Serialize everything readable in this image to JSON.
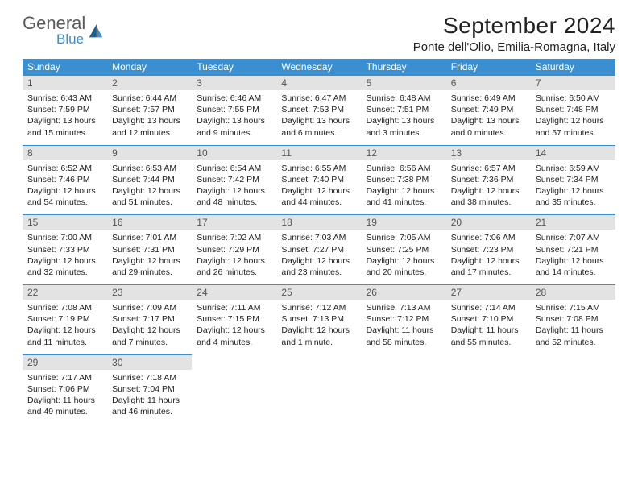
{
  "brand": {
    "general": "General",
    "blue": "Blue"
  },
  "title": "September 2024",
  "location": "Ponte dell'Olio, Emilia-Romagna, Italy",
  "colors": {
    "header_bg": "#3a8fd0",
    "header_text": "#ffffff",
    "daynum_bg": "#e3e3e3",
    "daynum_text": "#555555",
    "body_text": "#222222",
    "rule": "#3a8fd0"
  },
  "fonts": {
    "title_pt": 28,
    "location_pt": 15,
    "dayheader_pt": 12,
    "daynum_pt": 12,
    "body_pt": 10.5
  },
  "day_headers": [
    "Sunday",
    "Monday",
    "Tuesday",
    "Wednesday",
    "Thursday",
    "Friday",
    "Saturday"
  ],
  "weeks": [
    [
      {
        "n": "1",
        "sr": "6:43 AM",
        "ss": "7:59 PM",
        "dl": "13 hours and 15 minutes."
      },
      {
        "n": "2",
        "sr": "6:44 AM",
        "ss": "7:57 PM",
        "dl": "13 hours and 12 minutes."
      },
      {
        "n": "3",
        "sr": "6:46 AM",
        "ss": "7:55 PM",
        "dl": "13 hours and 9 minutes."
      },
      {
        "n": "4",
        "sr": "6:47 AM",
        "ss": "7:53 PM",
        "dl": "13 hours and 6 minutes."
      },
      {
        "n": "5",
        "sr": "6:48 AM",
        "ss": "7:51 PM",
        "dl": "13 hours and 3 minutes."
      },
      {
        "n": "6",
        "sr": "6:49 AM",
        "ss": "7:49 PM",
        "dl": "13 hours and 0 minutes."
      },
      {
        "n": "7",
        "sr": "6:50 AM",
        "ss": "7:48 PM",
        "dl": "12 hours and 57 minutes."
      }
    ],
    [
      {
        "n": "8",
        "sr": "6:52 AM",
        "ss": "7:46 PM",
        "dl": "12 hours and 54 minutes."
      },
      {
        "n": "9",
        "sr": "6:53 AM",
        "ss": "7:44 PM",
        "dl": "12 hours and 51 minutes."
      },
      {
        "n": "10",
        "sr": "6:54 AM",
        "ss": "7:42 PM",
        "dl": "12 hours and 48 minutes."
      },
      {
        "n": "11",
        "sr": "6:55 AM",
        "ss": "7:40 PM",
        "dl": "12 hours and 44 minutes."
      },
      {
        "n": "12",
        "sr": "6:56 AM",
        "ss": "7:38 PM",
        "dl": "12 hours and 41 minutes."
      },
      {
        "n": "13",
        "sr": "6:57 AM",
        "ss": "7:36 PM",
        "dl": "12 hours and 38 minutes."
      },
      {
        "n": "14",
        "sr": "6:59 AM",
        "ss": "7:34 PM",
        "dl": "12 hours and 35 minutes."
      }
    ],
    [
      {
        "n": "15",
        "sr": "7:00 AM",
        "ss": "7:33 PM",
        "dl": "12 hours and 32 minutes."
      },
      {
        "n": "16",
        "sr": "7:01 AM",
        "ss": "7:31 PM",
        "dl": "12 hours and 29 minutes."
      },
      {
        "n": "17",
        "sr": "7:02 AM",
        "ss": "7:29 PM",
        "dl": "12 hours and 26 minutes."
      },
      {
        "n": "18",
        "sr": "7:03 AM",
        "ss": "7:27 PM",
        "dl": "12 hours and 23 minutes."
      },
      {
        "n": "19",
        "sr": "7:05 AM",
        "ss": "7:25 PM",
        "dl": "12 hours and 20 minutes."
      },
      {
        "n": "20",
        "sr": "7:06 AM",
        "ss": "7:23 PM",
        "dl": "12 hours and 17 minutes."
      },
      {
        "n": "21",
        "sr": "7:07 AM",
        "ss": "7:21 PM",
        "dl": "12 hours and 14 minutes."
      }
    ],
    [
      {
        "n": "22",
        "sr": "7:08 AM",
        "ss": "7:19 PM",
        "dl": "12 hours and 11 minutes."
      },
      {
        "n": "23",
        "sr": "7:09 AM",
        "ss": "7:17 PM",
        "dl": "12 hours and 7 minutes."
      },
      {
        "n": "24",
        "sr": "7:11 AM",
        "ss": "7:15 PM",
        "dl": "12 hours and 4 minutes."
      },
      {
        "n": "25",
        "sr": "7:12 AM",
        "ss": "7:13 PM",
        "dl": "12 hours and 1 minute."
      },
      {
        "n": "26",
        "sr": "7:13 AM",
        "ss": "7:12 PM",
        "dl": "11 hours and 58 minutes."
      },
      {
        "n": "27",
        "sr": "7:14 AM",
        "ss": "7:10 PM",
        "dl": "11 hours and 55 minutes."
      },
      {
        "n": "28",
        "sr": "7:15 AM",
        "ss": "7:08 PM",
        "dl": "11 hours and 52 minutes."
      }
    ],
    [
      {
        "n": "29",
        "sr": "7:17 AM",
        "ss": "7:06 PM",
        "dl": "11 hours and 49 minutes."
      },
      {
        "n": "30",
        "sr": "7:18 AM",
        "ss": "7:04 PM",
        "dl": "11 hours and 46 minutes."
      },
      null,
      null,
      null,
      null,
      null
    ]
  ],
  "labels": {
    "sunrise": "Sunrise:",
    "sunset": "Sunset:",
    "daylight": "Daylight:"
  }
}
